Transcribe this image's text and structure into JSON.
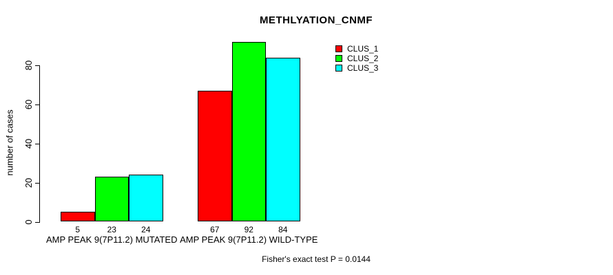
{
  "title": "METHLYATION_CNMF",
  "y_axis_title": "number of cases",
  "footer": "Fisher's exact test P = 0.0144",
  "chart_data": {
    "type": "bar",
    "title": "METHLYATION_CNMF",
    "xlabel": "",
    "ylabel": "number of cases",
    "categories": [
      "AMP PEAK  9(7P11.2) MUTATED",
      "AMP PEAK  9(7P11.2) WILD-TYPE"
    ],
    "series": [
      {
        "name": "CLUS_1",
        "color": "#ff0000",
        "values": [
          5,
          67
        ]
      },
      {
        "name": "CLUS_2",
        "color": "#00ff00",
        "values": [
          23,
          92
        ]
      },
      {
        "name": "CLUS_3",
        "color": "#00ffff",
        "values": [
          24,
          84
        ]
      }
    ],
    "bar_value_labels": [
      [
        "5",
        "23",
        "24"
      ],
      [
        "67",
        "92",
        "84"
      ]
    ],
    "yticks": [
      0,
      20,
      40,
      60,
      80
    ],
    "ylim": [
      0,
      92
    ],
    "grid": false,
    "legend_position": "top-right",
    "annotation": "Fisher's exact test P = 0.0144"
  }
}
